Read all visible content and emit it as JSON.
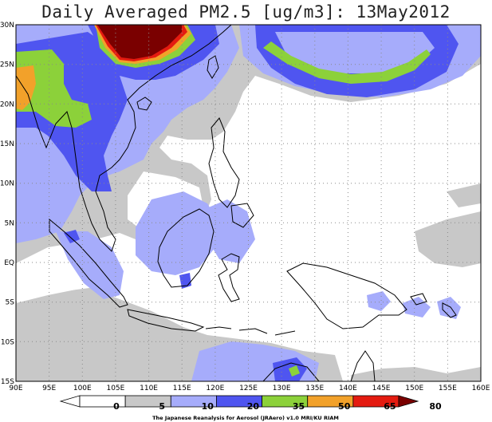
{
  "title": "Daily Averaged PM2.5 [ug/m3]: 13May2012",
  "lon_labels": [
    "90E",
    "95E",
    "100E",
    "105E",
    "110E",
    "115E",
    "120E",
    "125E",
    "130E",
    "135E",
    "140E",
    "145E",
    "150E",
    "155E",
    "160E"
  ],
  "lat_labels": [
    "30N",
    "25N",
    "20N",
    "15N",
    "10N",
    "5N",
    "EQ",
    "5S",
    "10S",
    "15S"
  ],
  "colorbar": {
    "levels": [
      "0",
      "5",
      "10",
      "20",
      "35",
      "50",
      "65",
      "80"
    ],
    "colors": [
      "#ffffff",
      "#ffffff",
      "#c8c8c8",
      "#a6acfb",
      "#4f55f0",
      "#8cd13a",
      "#f2a12a",
      "#e41b10",
      "#7a0000"
    ]
  },
  "credit": "The Japanese Reanalysis for Aerosol (JRAero) v1.0 MRI/KU RIAM",
  "map": {
    "lon_range": [
      90,
      160
    ],
    "lat_range": [
      -15,
      30
    ],
    "grid": "dotted every 5 degrees"
  }
}
